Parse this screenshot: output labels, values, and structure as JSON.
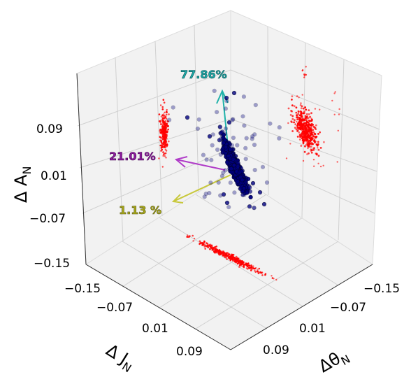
{
  "chart_data": {
    "type": "scatter3d",
    "view": "isometric",
    "grid": true,
    "pane_color": "#f2f2f2",
    "axes": {
      "z": {
        "label": "Δ A_N",
        "ticks": [
          "0.09",
          "0.01",
          "−0.07",
          "−0.15"
        ]
      },
      "x": {
        "label": "Δ J_N",
        "ticks": [
          "−0.15",
          "−0.07",
          "0.01",
          "0.09"
        ]
      },
      "y": {
        "label": "Δθ_N",
        "ticks": [
          "−0.15",
          "−0.07",
          "0.01",
          "0.09"
        ]
      }
    },
    "series": [
      {
        "role": "points",
        "color": "#000080",
        "edge": "#000033",
        "marker": "circle",
        "approx_count": 900
      },
      {
        "role": "projections",
        "color": "#ff0000",
        "marker": "dot",
        "planes": [
          "left",
          "right",
          "floor"
        ]
      }
    ],
    "principal_components": [
      {
        "label": "77.86%",
        "color": "#20b2aa",
        "text_color": "#1fa8a8"
      },
      {
        "label": "21.01%",
        "color": "#b03cc8",
        "text_color": "#8b1a9c"
      },
      {
        "label": "1.13 %",
        "color": "#c8c83c",
        "text_color": "#a8a81a"
      }
    ]
  }
}
